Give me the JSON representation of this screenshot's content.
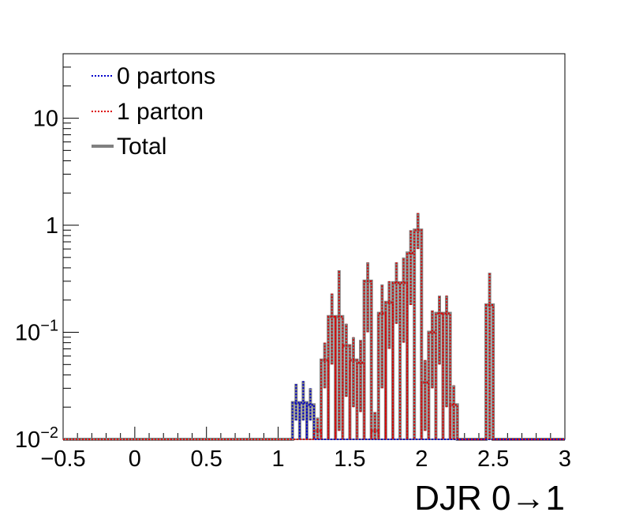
{
  "chart_data": {
    "type": "histogram",
    "xlabel": "DJR 0→1",
    "ylabel": "",
    "xlim": [
      -0.5,
      3
    ],
    "ylim": [
      0.01,
      40
    ],
    "yscale": "log",
    "grid": false,
    "legend_position": "top-left",
    "x_ticks": [
      -0.5,
      0,
      0.5,
      1,
      1.5,
      2,
      2.5,
      3
    ],
    "x_tick_labels": [
      "−0.5",
      "0",
      "0.5",
      "1",
      "1.5",
      "2",
      "2.5",
      "3"
    ],
    "y_ticks": [
      0.01,
      0.1,
      1,
      10
    ],
    "y_tick_labels": [
      {
        "base": "10",
        "exp": "−2"
      },
      {
        "base": "10",
        "exp": "−1"
      },
      {
        "base": "1",
        "exp": ""
      },
      {
        "base": "10",
        "exp": ""
      }
    ],
    "bin_width": 0.05,
    "series": [
      {
        "name": "0 partons",
        "color": "#0000cc",
        "style": "dotted",
        "bins": [
          {
            "x0": 1.1,
            "value": 0.022,
            "err_low": 0.015,
            "err_high": 0.033
          },
          {
            "x0": 1.15,
            "value": 0.022,
            "err_low": 0.015,
            "err_high": 0.035
          },
          {
            "x0": 1.2,
            "value": 0.021,
            "err_low": 0.015,
            "err_high": 0.03
          }
        ]
      },
      {
        "name": "1 parton",
        "color": "#dd0000",
        "style": "dotted",
        "bins": [
          {
            "x0": 1.25,
            "value": 0.012,
            "err_low": 0.01,
            "err_high": 0.016
          },
          {
            "x0": 1.3,
            "value": 0.055,
            "err_low": 0.03,
            "err_high": 0.08
          },
          {
            "x0": 1.35,
            "value": 0.14,
            "err_low": 0.05,
            "err_high": 0.23
          },
          {
            "x0": 1.4,
            "value": 0.14,
            "err_low": 0.012,
            "err_high": 0.38
          },
          {
            "x0": 1.45,
            "value": 0.075,
            "err_low": 0.025,
            "err_high": 0.12
          },
          {
            "x0": 1.5,
            "value": 0.055,
            "err_low": 0.02,
            "err_high": 0.09
          },
          {
            "x0": 1.55,
            "value": 0.052,
            "err_low": 0.018,
            "err_high": 0.085
          },
          {
            "x0": 1.6,
            "value": 0.3,
            "err_low": 0.1,
            "err_high": 0.45
          },
          {
            "x0": 1.65,
            "value": 0.012,
            "err_low": 0.01,
            "err_high": 0.018
          },
          {
            "x0": 1.7,
            "value": 0.15,
            "err_low": 0.03,
            "err_high": 0.28
          },
          {
            "x0": 1.75,
            "value": 0.19,
            "err_low": 0.07,
            "err_high": 0.3
          },
          {
            "x0": 1.8,
            "value": 0.29,
            "err_low": 0.12,
            "err_high": 0.45
          },
          {
            "x0": 1.85,
            "value": 0.29,
            "err_low": 0.08,
            "err_high": 0.5
          },
          {
            "x0": 1.9,
            "value": 0.55,
            "err_low": 0.18,
            "err_high": 0.9
          },
          {
            "x0": 1.95,
            "value": 0.9,
            "err_low": 0.6,
            "err_high": 1.3
          },
          {
            "x0": 2.0,
            "value": 0.034,
            "err_low": 0.012,
            "err_high": 0.055
          },
          {
            "x0": 2.05,
            "value": 0.1,
            "err_low": 0.03,
            "err_high": 0.16
          },
          {
            "x0": 2.1,
            "value": 0.15,
            "err_low": 0.05,
            "err_high": 0.22
          },
          {
            "x0": 2.15,
            "value": 0.15,
            "err_low": 0.02,
            "err_high": 0.22
          },
          {
            "x0": 2.2,
            "value": 0.021,
            "err_low": 0.01,
            "err_high": 0.032
          },
          {
            "x0": 2.25,
            "value": 0.01,
            "err_low": 0.01,
            "err_high": 0.01
          },
          {
            "x0": 2.3,
            "value": 0.01,
            "err_low": 0.01,
            "err_high": 0.01
          },
          {
            "x0": 2.35,
            "value": 0.01,
            "err_low": 0.01,
            "err_high": 0.01
          },
          {
            "x0": 2.4,
            "value": 0.01,
            "err_low": 0.01,
            "err_high": 0.01
          },
          {
            "x0": 2.45,
            "value": 0.18,
            "err_low": 0.01,
            "err_high": 0.36
          }
        ]
      },
      {
        "name": "Total",
        "color": "#808080",
        "style": "solid",
        "bins": []
      }
    ]
  }
}
